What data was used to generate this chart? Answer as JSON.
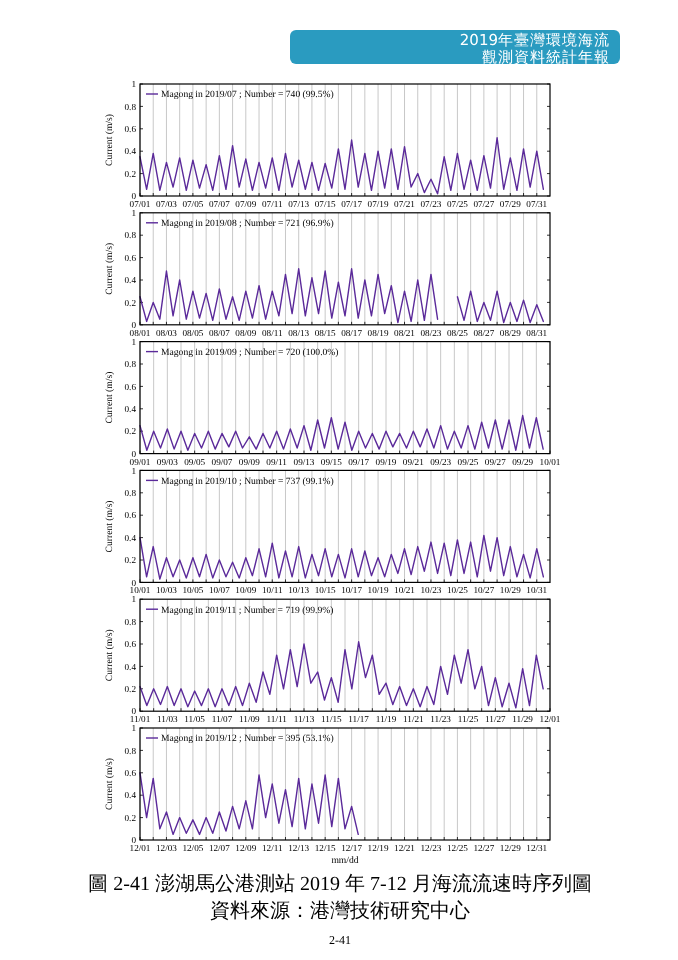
{
  "chart_data": [
    {
      "type": "line",
      "ylabel": "Current (m/s)",
      "ylim": [
        0,
        1
      ],
      "yticks": [
        0,
        0.2,
        0.4,
        0.6,
        0.8,
        1
      ],
      "xlim": [
        "2019-07-01",
        "2019-08-01"
      ],
      "grid": "x",
      "legend": "top left",
      "annotations": [
        "2019年臺灣環境海流",
        "觀測資料統計年報"
      ],
      "xticks": [
        {
          "value": "2019-07-01",
          "label": "07/01"
        },
        {
          "value": "2019-07-02",
          "label": null
        },
        {
          "value": "2019-07-03",
          "label": "07/03"
        },
        {
          "value": "2019-07-04",
          "label": null
        },
        {
          "value": "2019-07-05",
          "label": "07/05"
        },
        {
          "value": "2019-07-06",
          "label": null
        },
        {
          "value": "2019-07-07",
          "label": "07/07"
        },
        {
          "value": "2019-07-08",
          "label": null
        },
        {
          "value": "2019-07-09",
          "label": "07/09"
        },
        {
          "value": "2019-07-10",
          "label": null
        },
        {
          "value": "2019-07-11",
          "label": "07/11"
        },
        {
          "value": "2019-07-12",
          "label": null
        },
        {
          "value": "2019-07-13",
          "label": "07/13"
        },
        {
          "value": "2019-07-14",
          "label": null
        },
        {
          "value": "2019-07-15",
          "label": "07/15"
        },
        {
          "value": "2019-07-16",
          "label": null
        },
        {
          "value": "2019-07-17",
          "label": "07/17"
        },
        {
          "value": "2019-07-18",
          "label": null
        },
        {
          "value": "2019-07-19",
          "label": "07/19"
        },
        {
          "value": "2019-07-20",
          "label": null
        },
        {
          "value": "2019-07-21",
          "label": "07/21"
        },
        {
          "value": "2019-07-22",
          "label": null
        },
        {
          "value": "2019-07-23",
          "label": "07/23"
        },
        {
          "value": "2019-07-24",
          "label": null
        },
        {
          "value": "2019-07-25",
          "label": "07/25"
        },
        {
          "value": "2019-07-26",
          "label": null
        },
        {
          "value": "2019-07-27",
          "label": "07/27"
        },
        {
          "value": "2019-07-28",
          "label": null
        },
        {
          "value": "2019-07-29",
          "label": "07/29"
        },
        {
          "value": "2019-07-30",
          "label": null
        },
        {
          "value": "2019-07-31",
          "label": "07/31"
        }
      ],
      "x": [
        "2019-07-01T00:00",
        "2019-07-01T12:00",
        "2019-07-02T00:00",
        "2019-07-02T12:00",
        "2019-07-03T00:00",
        "2019-07-03T12:00",
        "2019-07-04T00:00",
        "2019-07-04T12:00",
        "2019-07-05T00:00",
        "2019-07-05T12:00",
        "2019-07-06T00:00",
        "2019-07-06T12:00",
        "2019-07-07T00:00",
        "2019-07-07T12:00",
        "2019-07-08T00:00",
        "2019-07-08T12:00",
        "2019-07-09T00:00",
        "2019-07-09T12:00",
        "2019-07-10T00:00",
        "2019-07-10T12:00",
        "2019-07-11T00:00",
        "2019-07-11T12:00",
        "2019-07-12T00:00",
        "2019-07-12T12:00",
        "2019-07-13T00:00",
        "2019-07-13T12:00",
        "2019-07-14T00:00",
        "2019-07-14T12:00",
        "2019-07-15T00:00",
        "2019-07-15T12:00",
        "2019-07-16T00:00",
        "2019-07-16T12:00",
        "2019-07-17T00:00",
        "2019-07-17T12:00",
        "2019-07-18T00:00",
        "2019-07-18T12:00",
        "2019-07-19T00:00",
        "2019-07-19T12:00",
        "2019-07-20T00:00",
        "2019-07-20T12:00",
        "2019-07-21T00:00",
        "2019-07-21T12:00",
        "2019-07-22T00:00",
        "2019-07-22T12:00",
        "2019-07-23T00:00",
        "2019-07-23T12:00",
        "2019-07-24T00:00",
        "2019-07-24T12:00",
        "2019-07-25T00:00",
        "2019-07-25T12:00",
        "2019-07-26T00:00",
        "2019-07-26T12:00",
        "2019-07-27T00:00",
        "2019-07-27T12:00",
        "2019-07-28T00:00",
        "2019-07-28T12:00",
        "2019-07-29T00:00",
        "2019-07-29T12:00",
        "2019-07-30T00:00",
        "2019-07-30T12:00",
        "2019-07-31T00:00",
        "2019-07-31T12:00"
      ],
      "series": [
        {
          "name": "Magong in 2019/07 ; Number = 740 (99.5%)",
          "color": "#5b2a9a",
          "values": [
            0.35,
            0.06,
            0.38,
            0.05,
            0.3,
            0.08,
            0.34,
            0.05,
            0.32,
            0.07,
            0.28,
            0.05,
            0.36,
            0.06,
            0.45,
            0.08,
            0.33,
            0.05,
            0.3,
            0.07,
            0.34,
            0.05,
            0.38,
            0.08,
            0.32,
            0.06,
            0.3,
            0.05,
            0.29,
            0.07,
            0.42,
            0.06,
            0.5,
            0.08,
            0.38,
            0.05,
            0.4,
            0.07,
            0.42,
            0.06,
            0.44,
            0.08,
            0.2,
            0.03,
            0.15,
            0.02,
            0.35,
            0.05,
            0.38,
            0.06,
            0.32,
            0.05,
            0.36,
            0.07,
            0.52,
            0.06,
            0.34,
            0.05,
            0.42,
            0.08,
            0.4,
            0.06
          ]
        }
      ]
    },
    {
      "type": "line",
      "ylabel": "Current (m/s)",
      "ylim": [
        0,
        1
      ],
      "yticks": [
        0,
        0.2,
        0.4,
        0.6,
        0.8,
        1
      ],
      "xlim": [
        "2019-08-01",
        "2019-09-01"
      ],
      "grid": "x",
      "legend": "top left",
      "xticks": [
        {
          "value": "2019-08-01",
          "label": "08/01"
        },
        {
          "value": "2019-08-02",
          "label": null
        },
        {
          "value": "2019-08-03",
          "label": "08/03"
        },
        {
          "value": "2019-08-04",
          "label": null
        },
        {
          "value": "2019-08-05",
          "label": "08/05"
        },
        {
          "value": "2019-08-06",
          "label": null
        },
        {
          "value": "2019-08-07",
          "label": "08/07"
        },
        {
          "value": "2019-08-08",
          "label": null
        },
        {
          "value": "2019-08-09",
          "label": "08/09"
        },
        {
          "value": "2019-08-10",
          "label": null
        },
        {
          "value": "2019-08-11",
          "label": "08/11"
        },
        {
          "value": "2019-08-12",
          "label": null
        },
        {
          "value": "2019-08-13",
          "label": "08/13"
        },
        {
          "value": "2019-08-14",
          "label": null
        },
        {
          "value": "2019-08-15",
          "label": "08/15"
        },
        {
          "value": "2019-08-16",
          "label": null
        },
        {
          "value": "2019-08-17",
          "label": "08/17"
        },
        {
          "value": "2019-08-18",
          "label": null
        },
        {
          "value": "2019-08-19",
          "label": "08/19"
        },
        {
          "value": "2019-08-20",
          "label": null
        },
        {
          "value": "2019-08-21",
          "label": "08/21"
        },
        {
          "value": "2019-08-22",
          "label": null
        },
        {
          "value": "2019-08-23",
          "label": "08/23"
        },
        {
          "value": "2019-08-24",
          "label": null
        },
        {
          "value": "2019-08-25",
          "label": "08/25"
        },
        {
          "value": "2019-08-26",
          "label": null
        },
        {
          "value": "2019-08-27",
          "label": "08/27"
        },
        {
          "value": "2019-08-28",
          "label": null
        },
        {
          "value": "2019-08-29",
          "label": "08/29"
        },
        {
          "value": "2019-08-30",
          "label": null
        },
        {
          "value": "2019-08-31",
          "label": "08/31"
        }
      ],
      "x": [
        "2019-08-01T00:00",
        "2019-08-01T12:00",
        "2019-08-02T00:00",
        "2019-08-02T12:00",
        "2019-08-03T00:00",
        "2019-08-03T12:00",
        "2019-08-04T00:00",
        "2019-08-04T12:00",
        "2019-08-05T00:00",
        "2019-08-05T12:00",
        "2019-08-06T00:00",
        "2019-08-06T12:00",
        "2019-08-07T00:00",
        "2019-08-07T12:00",
        "2019-08-08T00:00",
        "2019-08-08T12:00",
        "2019-08-09T00:00",
        "2019-08-09T12:00",
        "2019-08-10T00:00",
        "2019-08-10T12:00",
        "2019-08-11T00:00",
        "2019-08-11T12:00",
        "2019-08-12T00:00",
        "2019-08-12T12:00",
        "2019-08-13T00:00",
        "2019-08-13T12:00",
        "2019-08-14T00:00",
        "2019-08-14T12:00",
        "2019-08-15T00:00",
        "2019-08-15T12:00",
        "2019-08-16T00:00",
        "2019-08-16T12:00",
        "2019-08-17T00:00",
        "2019-08-17T12:00",
        "2019-08-18T00:00",
        "2019-08-18T12:00",
        "2019-08-19T00:00",
        "2019-08-19T12:00",
        "2019-08-20T00:00",
        "2019-08-20T12:00",
        "2019-08-21T00:00",
        "2019-08-21T12:00",
        "2019-08-22T00:00",
        "2019-08-22T12:00",
        "2019-08-23T00:00",
        "2019-08-23T12:00",
        "2019-08-24T00:00",
        "2019-08-24T12:00",
        "2019-08-25T00:00",
        "2019-08-25T12:00",
        "2019-08-26T00:00",
        "2019-08-26T12:00",
        "2019-08-27T00:00",
        "2019-08-27T12:00",
        "2019-08-28T00:00",
        "2019-08-28T12:00",
        "2019-08-29T00:00",
        "2019-08-29T12:00",
        "2019-08-30T00:00",
        "2019-08-30T12:00",
        "2019-08-31T00:00",
        "2019-08-31T12:00"
      ],
      "series": [
        {
          "name": "Magong in 2019/08 ; Number = 721 (96.9%)",
          "color": "#5b2a9a",
          "values": [
            0.25,
            0.03,
            0.2,
            0.05,
            0.48,
            0.08,
            0.4,
            0.05,
            0.3,
            0.06,
            0.28,
            0.04,
            0.32,
            0.05,
            0.25,
            0.04,
            0.3,
            0.06,
            0.35,
            0.05,
            0.3,
            0.08,
            0.45,
            0.1,
            0.5,
            0.08,
            0.42,
            0.1,
            0.48,
            0.06,
            0.38,
            0.08,
            0.5,
            0.06,
            0.4,
            0.08,
            0.45,
            0.1,
            0.35,
            0.02,
            0.3,
            0.03,
            0.4,
            0.04,
            0.45,
            0.05,
            null,
            null,
            0.25,
            0.04,
            0.3,
            0.03,
            0.2,
            0.04,
            0.3,
            0.02,
            0.2,
            0.03,
            0.22,
            0.02,
            0.18,
            0.03
          ]
        }
      ]
    },
    {
      "type": "line",
      "ylabel": "Current (m/s)",
      "ylim": [
        0,
        1
      ],
      "yticks": [
        0,
        0.2,
        0.4,
        0.6,
        0.8,
        1
      ],
      "xlim": [
        "2019-09-01",
        "2019-10-01"
      ],
      "grid": "x",
      "legend": "top left",
      "xticks": [
        {
          "value": "2019-09-01",
          "label": "09/01"
        },
        {
          "value": "2019-09-02",
          "label": null
        },
        {
          "value": "2019-09-03",
          "label": "09/03"
        },
        {
          "value": "2019-09-04",
          "label": null
        },
        {
          "value": "2019-09-05",
          "label": "09/05"
        },
        {
          "value": "2019-09-06",
          "label": null
        },
        {
          "value": "2019-09-07",
          "label": "09/07"
        },
        {
          "value": "2019-09-08",
          "label": null
        },
        {
          "value": "2019-09-09",
          "label": "09/09"
        },
        {
          "value": "2019-09-10",
          "label": null
        },
        {
          "value": "2019-09-11",
          "label": "09/11"
        },
        {
          "value": "2019-09-12",
          "label": null
        },
        {
          "value": "2019-09-13",
          "label": "09/13"
        },
        {
          "value": "2019-09-14",
          "label": null
        },
        {
          "value": "2019-09-15",
          "label": "09/15"
        },
        {
          "value": "2019-09-16",
          "label": null
        },
        {
          "value": "2019-09-17",
          "label": "09/17"
        },
        {
          "value": "2019-09-18",
          "label": null
        },
        {
          "value": "2019-09-19",
          "label": "09/19"
        },
        {
          "value": "2019-09-20",
          "label": null
        },
        {
          "value": "2019-09-21",
          "label": "09/21"
        },
        {
          "value": "2019-09-22",
          "label": null
        },
        {
          "value": "2019-09-23",
          "label": "09/23"
        },
        {
          "value": "2019-09-24",
          "label": null
        },
        {
          "value": "2019-09-25",
          "label": "09/25"
        },
        {
          "value": "2019-09-26",
          "label": null
        },
        {
          "value": "2019-09-27",
          "label": "09/27"
        },
        {
          "value": "2019-09-28",
          "label": null
        },
        {
          "value": "2019-09-29",
          "label": "09/29"
        },
        {
          "value": "2019-09-30",
          "label": null
        },
        {
          "value": "2019-10-01",
          "label": "10/01"
        }
      ],
      "x": [
        "2019-09-01T00:00",
        "2019-09-01T12:00",
        "2019-09-02T00:00",
        "2019-09-02T12:00",
        "2019-09-03T00:00",
        "2019-09-03T12:00",
        "2019-09-04T00:00",
        "2019-09-04T12:00",
        "2019-09-05T00:00",
        "2019-09-05T12:00",
        "2019-09-06T00:00",
        "2019-09-06T12:00",
        "2019-09-07T00:00",
        "2019-09-07T12:00",
        "2019-09-08T00:00",
        "2019-09-08T12:00",
        "2019-09-09T00:00",
        "2019-09-09T12:00",
        "2019-09-10T00:00",
        "2019-09-10T12:00",
        "2019-09-11T00:00",
        "2019-09-11T12:00",
        "2019-09-12T00:00",
        "2019-09-12T12:00",
        "2019-09-13T00:00",
        "2019-09-13T12:00",
        "2019-09-14T00:00",
        "2019-09-14T12:00",
        "2019-09-15T00:00",
        "2019-09-15T12:00",
        "2019-09-16T00:00",
        "2019-09-16T12:00",
        "2019-09-17T00:00",
        "2019-09-17T12:00",
        "2019-09-18T00:00",
        "2019-09-18T12:00",
        "2019-09-19T00:00",
        "2019-09-19T12:00",
        "2019-09-20T00:00",
        "2019-09-20T12:00",
        "2019-09-21T00:00",
        "2019-09-21T12:00",
        "2019-09-22T00:00",
        "2019-09-22T12:00",
        "2019-09-23T00:00",
        "2019-09-23T12:00",
        "2019-09-24T00:00",
        "2019-09-24T12:00",
        "2019-09-25T00:00",
        "2019-09-25T12:00",
        "2019-09-26T00:00",
        "2019-09-26T12:00",
        "2019-09-27T00:00",
        "2019-09-27T12:00",
        "2019-09-28T00:00",
        "2019-09-28T12:00",
        "2019-09-29T00:00",
        "2019-09-29T12:00",
        "2019-09-30T00:00",
        "2019-09-30T12:00"
      ],
      "series": [
        {
          "name": "Magong in 2019/09 ; Number = 720 (100.0%)",
          "color": "#5b2a9a",
          "values": [
            0.25,
            0.03,
            0.2,
            0.05,
            0.22,
            0.04,
            0.2,
            0.03,
            0.18,
            0.05,
            0.2,
            0.04,
            0.18,
            0.06,
            0.2,
            0.05,
            0.15,
            0.04,
            0.18,
            0.05,
            0.2,
            0.04,
            0.22,
            0.05,
            0.25,
            0.03,
            0.3,
            0.05,
            0.32,
            0.04,
            0.28,
            0.03,
            0.2,
            0.05,
            0.18,
            0.04,
            0.2,
            0.06,
            0.18,
            0.05,
            0.2,
            0.06,
            0.22,
            0.05,
            0.25,
            0.04,
            0.2,
            0.05,
            0.25,
            0.04,
            0.28,
            0.05,
            0.3,
            0.04,
            0.3,
            0.03,
            0.34,
            0.05,
            0.32,
            0.04
          ]
        }
      ]
    },
    {
      "type": "line",
      "ylabel": "Current (m/s)",
      "ylim": [
        0,
        1
      ],
      "yticks": [
        0,
        0.2,
        0.4,
        0.6,
        0.8,
        1
      ],
      "xlim": [
        "2019-10-01",
        "2019-11-01"
      ],
      "grid": "x",
      "legend": "top left",
      "xticks": [
        {
          "value": "2019-10-01",
          "label": "10/01"
        },
        {
          "value": "2019-10-02",
          "label": null
        },
        {
          "value": "2019-10-03",
          "label": "10/03"
        },
        {
          "value": "2019-10-04",
          "label": null
        },
        {
          "value": "2019-10-05",
          "label": "10/05"
        },
        {
          "value": "2019-10-06",
          "label": null
        },
        {
          "value": "2019-10-07",
          "label": "10/07"
        },
        {
          "value": "2019-10-08",
          "label": null
        },
        {
          "value": "2019-10-09",
          "label": "10/09"
        },
        {
          "value": "2019-10-10",
          "label": null
        },
        {
          "value": "2019-10-11",
          "label": "10/11"
        },
        {
          "value": "2019-10-12",
          "label": null
        },
        {
          "value": "2019-10-13",
          "label": "10/13"
        },
        {
          "value": "2019-10-14",
          "label": null
        },
        {
          "value": "2019-10-15",
          "label": "10/15"
        },
        {
          "value": "2019-10-16",
          "label": null
        },
        {
          "value": "2019-10-17",
          "label": "10/17"
        },
        {
          "value": "2019-10-18",
          "label": null
        },
        {
          "value": "2019-10-19",
          "label": "10/19"
        },
        {
          "value": "2019-10-20",
          "label": null
        },
        {
          "value": "2019-10-21",
          "label": "10/21"
        },
        {
          "value": "2019-10-22",
          "label": null
        },
        {
          "value": "2019-10-23",
          "label": "10/23"
        },
        {
          "value": "2019-10-24",
          "label": null
        },
        {
          "value": "2019-10-25",
          "label": "10/25"
        },
        {
          "value": "2019-10-26",
          "label": null
        },
        {
          "value": "2019-10-27",
          "label": "10/27"
        },
        {
          "value": "2019-10-28",
          "label": null
        },
        {
          "value": "2019-10-29",
          "label": "10/29"
        },
        {
          "value": "2019-10-30",
          "label": null
        },
        {
          "value": "2019-10-31",
          "label": "10/31"
        }
      ],
      "x": [
        "2019-10-01T00:00",
        "2019-10-01T12:00",
        "2019-10-02T00:00",
        "2019-10-02T12:00",
        "2019-10-03T00:00",
        "2019-10-03T12:00",
        "2019-10-04T00:00",
        "2019-10-04T12:00",
        "2019-10-05T00:00",
        "2019-10-05T12:00",
        "2019-10-06T00:00",
        "2019-10-06T12:00",
        "2019-10-07T00:00",
        "2019-10-07T12:00",
        "2019-10-08T00:00",
        "2019-10-08T12:00",
        "2019-10-09T00:00",
        "2019-10-09T12:00",
        "2019-10-10T00:00",
        "2019-10-10T12:00",
        "2019-10-11T00:00",
        "2019-10-11T12:00",
        "2019-10-12T00:00",
        "2019-10-12T12:00",
        "2019-10-13T00:00",
        "2019-10-13T12:00",
        "2019-10-14T00:00",
        "2019-10-14T12:00",
        "2019-10-15T00:00",
        "2019-10-15T12:00",
        "2019-10-16T00:00",
        "2019-10-16T12:00",
        "2019-10-17T00:00",
        "2019-10-17T12:00",
        "2019-10-18T00:00",
        "2019-10-18T12:00",
        "2019-10-19T00:00",
        "2019-10-19T12:00",
        "2019-10-20T00:00",
        "2019-10-20T12:00",
        "2019-10-21T00:00",
        "2019-10-21T12:00",
        "2019-10-22T00:00",
        "2019-10-22T12:00",
        "2019-10-23T00:00",
        "2019-10-23T12:00",
        "2019-10-24T00:00",
        "2019-10-24T12:00",
        "2019-10-25T00:00",
        "2019-10-25T12:00",
        "2019-10-26T00:00",
        "2019-10-26T12:00",
        "2019-10-27T00:00",
        "2019-10-27T12:00",
        "2019-10-28T00:00",
        "2019-10-28T12:00",
        "2019-10-29T00:00",
        "2019-10-29T12:00",
        "2019-10-30T00:00",
        "2019-10-30T12:00",
        "2019-10-31T00:00",
        "2019-10-31T12:00"
      ],
      "series": [
        {
          "name": "Magong in 2019/10 ; Number = 737 (99.1%)",
          "color": "#5b2a9a",
          "values": [
            0.4,
            0.05,
            0.32,
            0.03,
            0.22,
            0.05,
            0.2,
            0.04,
            0.22,
            0.05,
            0.25,
            0.04,
            0.2,
            0.05,
            0.18,
            0.04,
            0.22,
            0.06,
            0.3,
            0.05,
            0.35,
            0.04,
            0.28,
            0.05,
            0.32,
            0.04,
            0.25,
            0.06,
            0.3,
            0.05,
            0.25,
            0.04,
            0.3,
            0.05,
            0.28,
            0.06,
            0.22,
            0.05,
            0.25,
            0.08,
            0.3,
            0.07,
            0.32,
            0.1,
            0.36,
            0.08,
            0.35,
            0.06,
            0.38,
            0.08,
            0.36,
            0.05,
            0.42,
            0.1,
            0.4,
            0.06,
            0.32,
            0.05,
            0.25,
            0.04,
            0.3,
            0.05
          ]
        }
      ]
    },
    {
      "type": "line",
      "ylabel": "Current (m/s)",
      "ylim": [
        0,
        1
      ],
      "yticks": [
        0,
        0.2,
        0.4,
        0.6,
        0.8,
        1
      ],
      "xlim": [
        "2019-11-01",
        "2019-12-01"
      ],
      "grid": "x",
      "legend": "top left",
      "xticks": [
        {
          "value": "2019-11-01",
          "label": "11/01"
        },
        {
          "value": "2019-11-02",
          "label": null
        },
        {
          "value": "2019-11-03",
          "label": "11/03"
        },
        {
          "value": "2019-11-04",
          "label": null
        },
        {
          "value": "2019-11-05",
          "label": "11/05"
        },
        {
          "value": "2019-11-06",
          "label": null
        },
        {
          "value": "2019-11-07",
          "label": "11/07"
        },
        {
          "value": "2019-11-08",
          "label": null
        },
        {
          "value": "2019-11-09",
          "label": "11/09"
        },
        {
          "value": "2019-11-10",
          "label": null
        },
        {
          "value": "2019-11-11",
          "label": "11/11"
        },
        {
          "value": "2019-11-12",
          "label": null
        },
        {
          "value": "2019-11-13",
          "label": "11/13"
        },
        {
          "value": "2019-11-14",
          "label": null
        },
        {
          "value": "2019-11-15",
          "label": "11/15"
        },
        {
          "value": "2019-11-16",
          "label": null
        },
        {
          "value": "2019-11-17",
          "label": "11/17"
        },
        {
          "value": "2019-11-18",
          "label": null
        },
        {
          "value": "2019-11-19",
          "label": "11/19"
        },
        {
          "value": "2019-11-20",
          "label": null
        },
        {
          "value": "2019-11-21",
          "label": "11/21"
        },
        {
          "value": "2019-11-22",
          "label": null
        },
        {
          "value": "2019-11-23",
          "label": "11/23"
        },
        {
          "value": "2019-11-24",
          "label": null
        },
        {
          "value": "2019-11-25",
          "label": "11/25"
        },
        {
          "value": "2019-11-26",
          "label": null
        },
        {
          "value": "2019-11-27",
          "label": "11/27"
        },
        {
          "value": "2019-11-28",
          "label": null
        },
        {
          "value": "2019-11-29",
          "label": "11/29"
        },
        {
          "value": "2019-11-30",
          "label": null
        },
        {
          "value": "2019-12-01",
          "label": "12/01"
        }
      ],
      "x": [
        "2019-11-01T00:00",
        "2019-11-01T12:00",
        "2019-11-02T00:00",
        "2019-11-02T12:00",
        "2019-11-03T00:00",
        "2019-11-03T12:00",
        "2019-11-04T00:00",
        "2019-11-04T12:00",
        "2019-11-05T00:00",
        "2019-11-05T12:00",
        "2019-11-06T00:00",
        "2019-11-06T12:00",
        "2019-11-07T00:00",
        "2019-11-07T12:00",
        "2019-11-08T00:00",
        "2019-11-08T12:00",
        "2019-11-09T00:00",
        "2019-11-09T12:00",
        "2019-11-10T00:00",
        "2019-11-10T12:00",
        "2019-11-11T00:00",
        "2019-11-11T12:00",
        "2019-11-12T00:00",
        "2019-11-12T12:00",
        "2019-11-13T00:00",
        "2019-11-13T12:00",
        "2019-11-14T00:00",
        "2019-11-14T12:00",
        "2019-11-15T00:00",
        "2019-11-15T12:00",
        "2019-11-16T00:00",
        "2019-11-16T12:00",
        "2019-11-17T00:00",
        "2019-11-17T12:00",
        "2019-11-18T00:00",
        "2019-11-18T12:00",
        "2019-11-19T00:00",
        "2019-11-19T12:00",
        "2019-11-20T00:00",
        "2019-11-20T12:00",
        "2019-11-21T00:00",
        "2019-11-21T12:00",
        "2019-11-22T00:00",
        "2019-11-22T12:00",
        "2019-11-23T00:00",
        "2019-11-23T12:00",
        "2019-11-24T00:00",
        "2019-11-24T12:00",
        "2019-11-25T00:00",
        "2019-11-25T12:00",
        "2019-11-26T00:00",
        "2019-11-26T12:00",
        "2019-11-27T00:00",
        "2019-11-27T12:00",
        "2019-11-28T00:00",
        "2019-11-28T12:00",
        "2019-11-29T00:00",
        "2019-11-29T12:00",
        "2019-11-30T00:00",
        "2019-11-30T12:00"
      ],
      "series": [
        {
          "name": "Magong in 2019/11 ; Number = 719 (99.9%)",
          "color": "#5b2a9a",
          "values": [
            0.22,
            0.05,
            0.2,
            0.06,
            0.22,
            0.05,
            0.2,
            0.04,
            0.18,
            0.05,
            0.2,
            0.04,
            0.2,
            0.05,
            0.22,
            0.05,
            0.25,
            0.08,
            0.35,
            0.15,
            0.5,
            0.2,
            0.55,
            0.22,
            0.6,
            0.25,
            0.35,
            0.1,
            0.3,
            0.08,
            0.55,
            0.2,
            0.62,
            0.3,
            0.5,
            0.15,
            0.25,
            0.06,
            0.22,
            0.05,
            0.2,
            0.04,
            0.22,
            0.06,
            0.4,
            0.15,
            0.5,
            0.25,
            0.55,
            0.2,
            0.4,
            0.05,
            0.3,
            0.04,
            0.25,
            0.03,
            0.38,
            0.05,
            0.5,
            0.2
          ]
        }
      ]
    },
    {
      "type": "line",
      "ylabel": "Current (m/s)",
      "xlabel": "mm/dd",
      "ylim": [
        0,
        1
      ],
      "yticks": [
        0,
        0.2,
        0.4,
        0.6,
        0.8,
        1
      ],
      "xlim": [
        "2019-12-01",
        "2020-01-01"
      ],
      "grid": "x",
      "legend": "top left",
      "annotations": [
        "圖 2-41  澎湖馬公港測站 2019 年 7-12 月海流流速時序列圖",
        "資料來源：港灣技術研究中心",
        "2-41"
      ],
      "xticks": [
        {
          "value": "2019-12-01",
          "label": "12/01"
        },
        {
          "value": "2019-12-02",
          "label": null
        },
        {
          "value": "2019-12-03",
          "label": "12/03"
        },
        {
          "value": "2019-12-04",
          "label": null
        },
        {
          "value": "2019-12-05",
          "label": "12/05"
        },
        {
          "value": "2019-12-06",
          "label": null
        },
        {
          "value": "2019-12-07",
          "label": "12/07"
        },
        {
          "value": "2019-12-08",
          "label": null
        },
        {
          "value": "2019-12-09",
          "label": "12/09"
        },
        {
          "value": "2019-12-10",
          "label": null
        },
        {
          "value": "2019-12-11",
          "label": "12/11"
        },
        {
          "value": "2019-12-12",
          "label": null
        },
        {
          "value": "2019-12-13",
          "label": "12/13"
        },
        {
          "value": "2019-12-14",
          "label": null
        },
        {
          "value": "2019-12-15",
          "label": "12/15"
        },
        {
          "value": "2019-12-16",
          "label": null
        },
        {
          "value": "2019-12-17",
          "label": "12/17"
        },
        {
          "value": "2019-12-18",
          "label": null
        },
        {
          "value": "2019-12-19",
          "label": "12/19"
        },
        {
          "value": "2019-12-20",
          "label": null
        },
        {
          "value": "2019-12-21",
          "label": "12/21"
        },
        {
          "value": "2019-12-22",
          "label": null
        },
        {
          "value": "2019-12-23",
          "label": "12/23"
        },
        {
          "value": "2019-12-24",
          "label": null
        },
        {
          "value": "2019-12-25",
          "label": "12/25"
        },
        {
          "value": "2019-12-26",
          "label": null
        },
        {
          "value": "2019-12-27",
          "label": "12/27"
        },
        {
          "value": "2019-12-28",
          "label": null
        },
        {
          "value": "2019-12-29",
          "label": "12/29"
        },
        {
          "value": "2019-12-30",
          "label": null
        },
        {
          "value": "2019-12-31",
          "label": "12/31"
        }
      ],
      "x": [
        "2019-12-01T00:00",
        "2019-12-01T12:00",
        "2019-12-02T00:00",
        "2019-12-02T12:00",
        "2019-12-03T00:00",
        "2019-12-03T12:00",
        "2019-12-04T00:00",
        "2019-12-04T12:00",
        "2019-12-05T00:00",
        "2019-12-05T12:00",
        "2019-12-06T00:00",
        "2019-12-06T12:00",
        "2019-12-07T00:00",
        "2019-12-07T12:00",
        "2019-12-08T00:00",
        "2019-12-08T12:00",
        "2019-12-09T00:00",
        "2019-12-09T12:00",
        "2019-12-10T00:00",
        "2019-12-10T12:00",
        "2019-12-11T00:00",
        "2019-12-11T12:00",
        "2019-12-12T00:00",
        "2019-12-12T12:00",
        "2019-12-13T00:00",
        "2019-12-13T12:00",
        "2019-12-14T00:00",
        "2019-12-14T12:00",
        "2019-12-15T00:00",
        "2019-12-15T12:00",
        "2019-12-16T00:00",
        "2019-12-16T12:00",
        "2019-12-17T00:00",
        "2019-12-17T12:00"
      ],
      "series": [
        {
          "name": "Magong in 2019/12 ; Number = 395 (53.1%)",
          "color": "#5b2a9a",
          "values": [
            0.6,
            0.2,
            0.55,
            0.1,
            0.25,
            0.05,
            0.2,
            0.06,
            0.18,
            0.05,
            0.2,
            0.06,
            0.25,
            0.08,
            0.3,
            0.1,
            0.35,
            0.1,
            0.58,
            0.2,
            0.5,
            0.15,
            0.45,
            0.12,
            0.55,
            0.1,
            0.5,
            0.15,
            0.58,
            0.12,
            0.55,
            0.1,
            0.3,
            0.05
          ]
        }
      ]
    }
  ]
}
